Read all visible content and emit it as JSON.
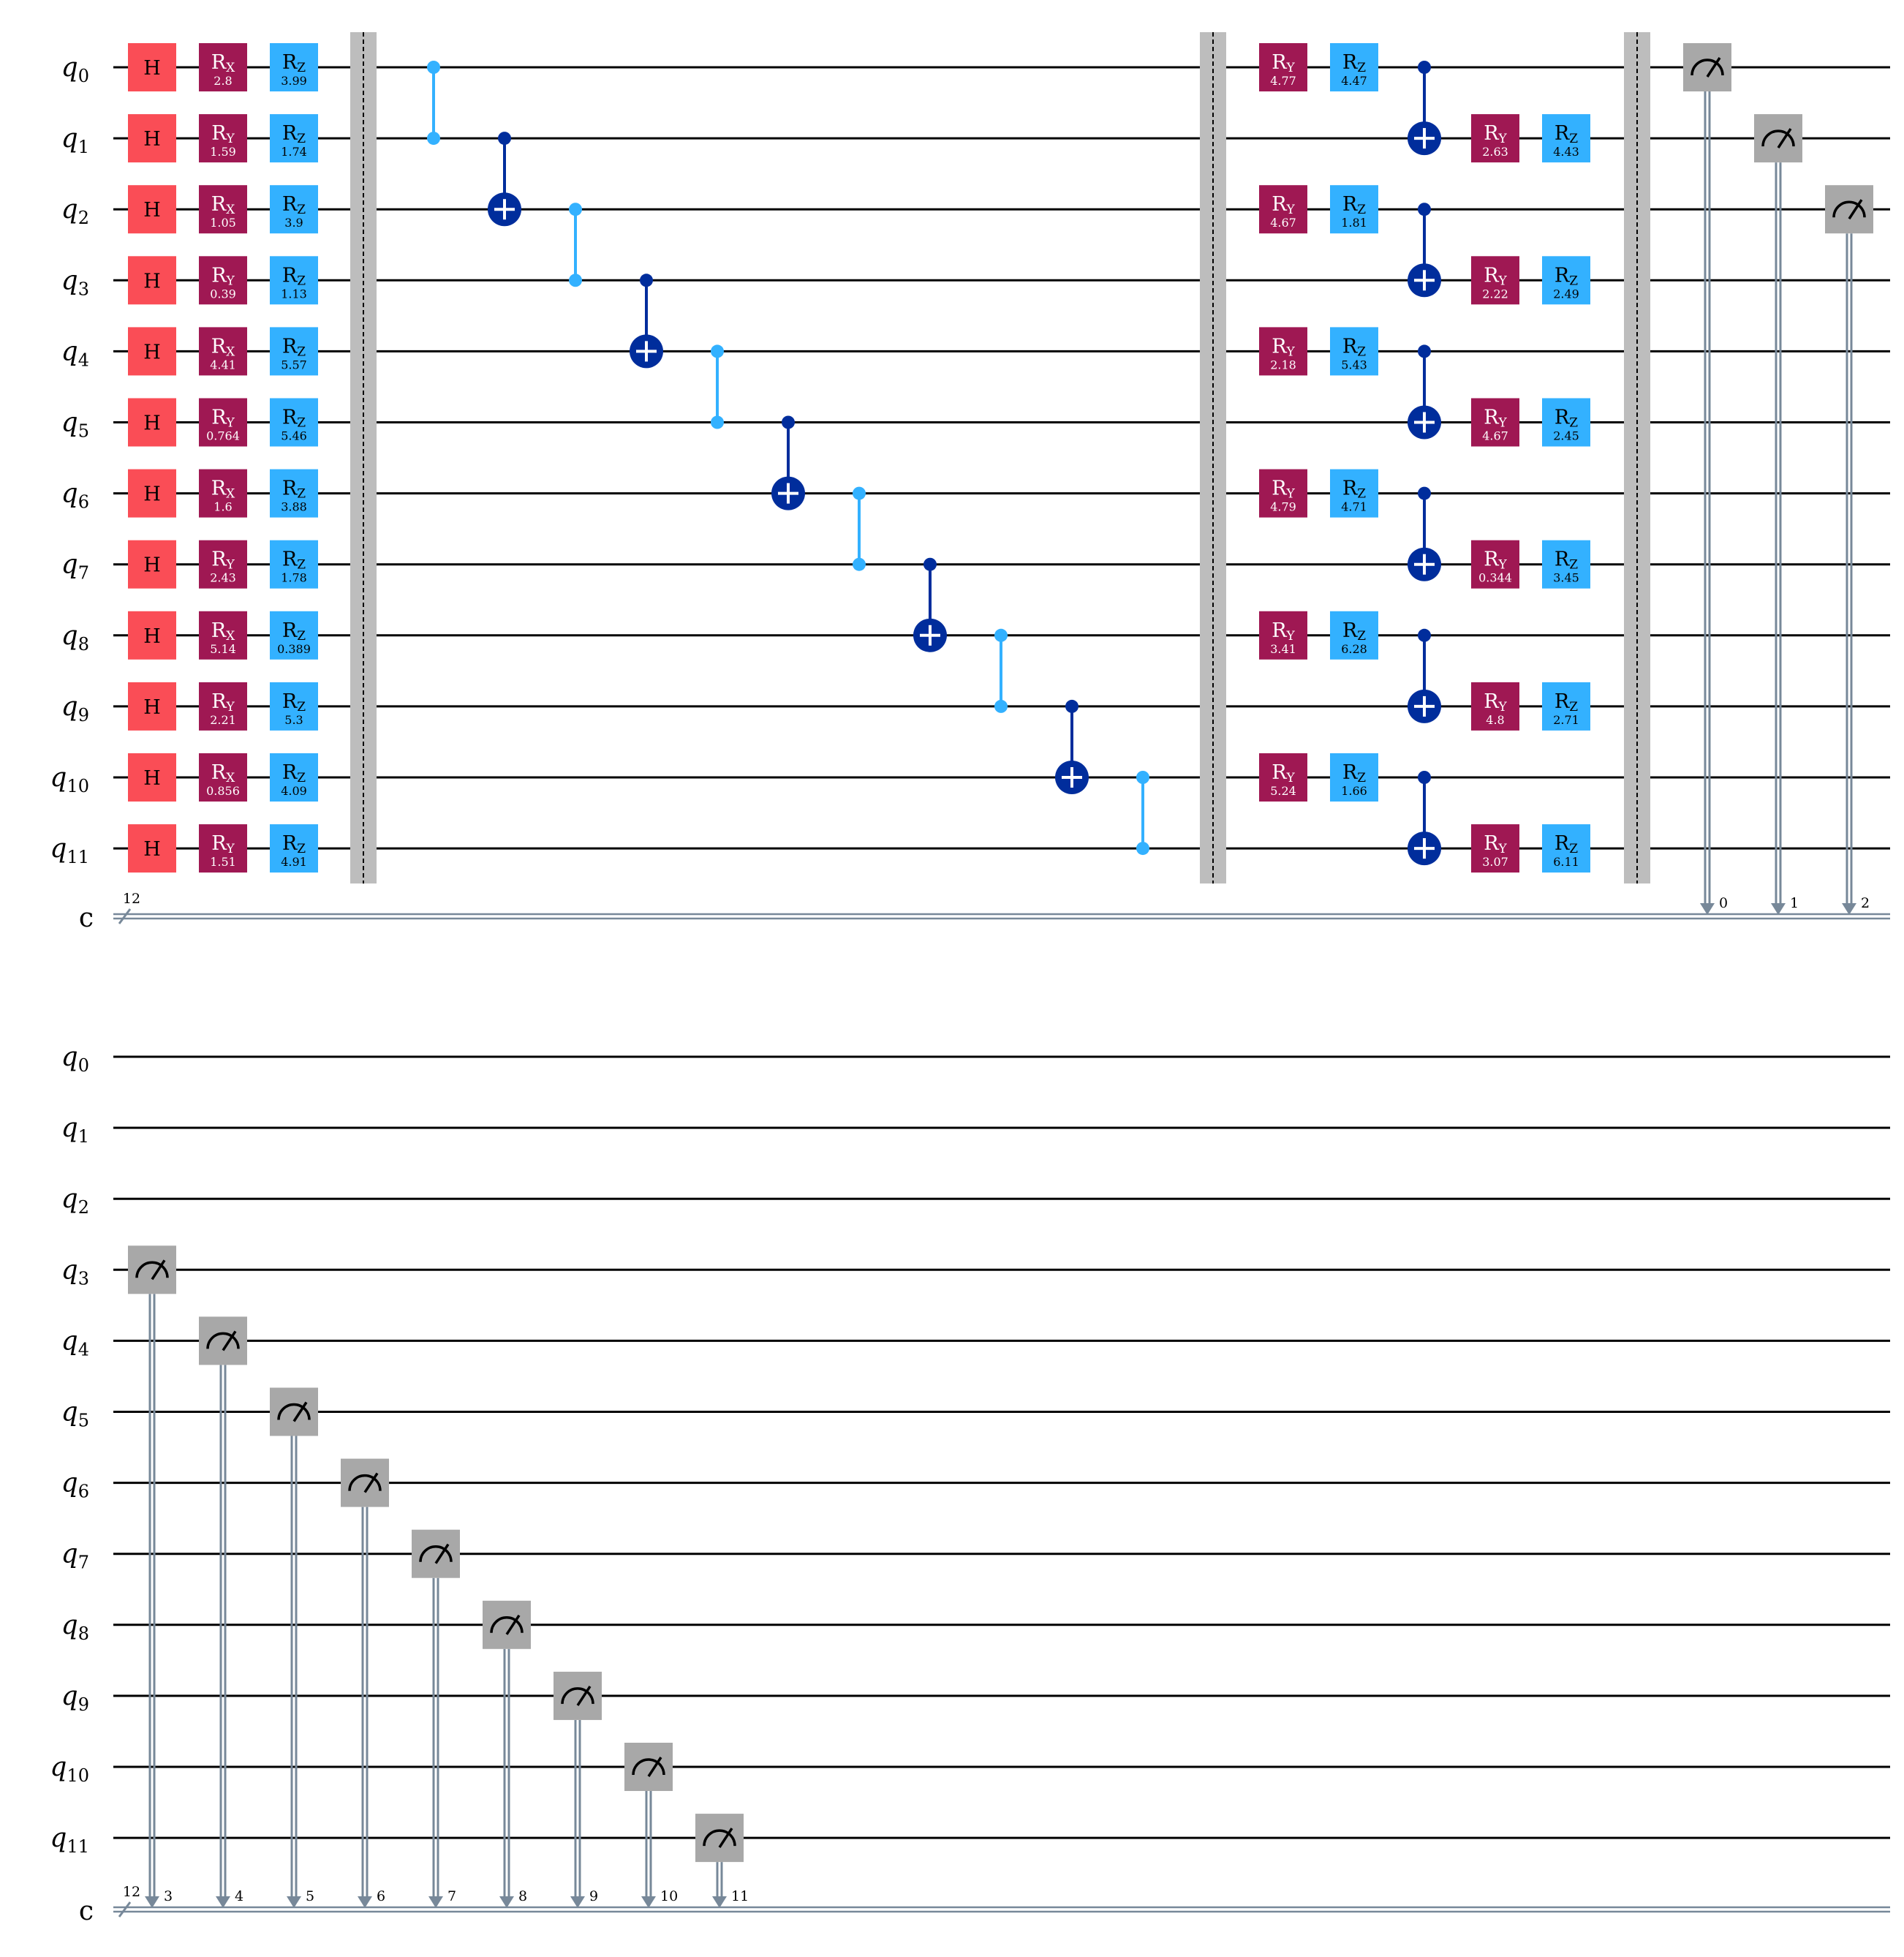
{
  "colors": {
    "h_gate": "#fa4d56",
    "rx_ry_gate": "#9f1853",
    "rz_gate": "#33b1ff",
    "cz_link": "#33b1ff",
    "cnot": "#002d9c",
    "measure": "#a8a8a8",
    "barrier": "#bdbdbd",
    "classical_wire": "#778899"
  },
  "icons": {
    "measure": "meter-icon",
    "cnot_target": "plus-circle-icon"
  },
  "qubits": [
    {
      "base": "q",
      "index": "0"
    },
    {
      "base": "q",
      "index": "1"
    },
    {
      "base": "q",
      "index": "2"
    },
    {
      "base": "q",
      "index": "3"
    },
    {
      "base": "q",
      "index": "4"
    },
    {
      "base": "q",
      "index": "5"
    },
    {
      "base": "q",
      "index": "6"
    },
    {
      "base": "q",
      "index": "7"
    },
    {
      "base": "q",
      "index": "8"
    },
    {
      "base": "q",
      "index": "9"
    },
    {
      "base": "q",
      "index": "10"
    },
    {
      "base": "q",
      "index": "11"
    }
  ],
  "classical_register": {
    "name": "c",
    "size": "12"
  },
  "layer1": {
    "h_label": "H",
    "rot": [
      {
        "axis": "X",
        "param": "2.8"
      },
      {
        "axis": "Y",
        "param": "1.59"
      },
      {
        "axis": "X",
        "param": "1.05"
      },
      {
        "axis": "Y",
        "param": "0.39"
      },
      {
        "axis": "X",
        "param": "4.41"
      },
      {
        "axis": "Y",
        "param": "0.764"
      },
      {
        "axis": "X",
        "param": "1.6"
      },
      {
        "axis": "Y",
        "param": "2.43"
      },
      {
        "axis": "X",
        "param": "5.14"
      },
      {
        "axis": "Y",
        "param": "2.21"
      },
      {
        "axis": "X",
        "param": "0.856"
      },
      {
        "axis": "Y",
        "param": "1.51"
      }
    ],
    "rz": [
      "3.99",
      "1.74",
      "3.9",
      "1.13",
      "5.57",
      "5.46",
      "3.88",
      "1.78",
      "0.389",
      "5.3",
      "4.09",
      "4.91"
    ]
  },
  "entangling": [
    {
      "type": "cz",
      "q": [
        0,
        1
      ]
    },
    {
      "type": "cx",
      "control": 1,
      "target": 2
    },
    {
      "type": "cz",
      "q": [
        2,
        3
      ]
    },
    {
      "type": "cx",
      "control": 3,
      "target": 4
    },
    {
      "type": "cz",
      "q": [
        4,
        5
      ]
    },
    {
      "type": "cx",
      "control": 5,
      "target": 6
    },
    {
      "type": "cz",
      "q": [
        6,
        7
      ]
    },
    {
      "type": "cx",
      "control": 7,
      "target": 8
    },
    {
      "type": "cz",
      "q": [
        8,
        9
      ]
    },
    {
      "type": "cx",
      "control": 9,
      "target": 10
    },
    {
      "type": "cz",
      "q": [
        10,
        11
      ]
    }
  ],
  "layer2_even": [
    {
      "q": 0,
      "ry": "4.77",
      "rz": "4.47"
    },
    {
      "q": 2,
      "ry": "4.67",
      "rz": "1.81"
    },
    {
      "q": 4,
      "ry": "2.18",
      "rz": "5.43"
    },
    {
      "q": 6,
      "ry": "4.79",
      "rz": "4.71"
    },
    {
      "q": 8,
      "ry": "3.41",
      "rz": "6.28"
    },
    {
      "q": 10,
      "ry": "5.24",
      "rz": "1.66"
    }
  ],
  "layer2_odd": [
    {
      "q": 1,
      "ry": "2.63",
      "rz": "4.43"
    },
    {
      "q": 3,
      "ry": "2.22",
      "rz": "2.49"
    },
    {
      "q": 5,
      "ry": "4.67",
      "rz": "2.45"
    },
    {
      "q": 7,
      "ry": "0.344",
      "rz": "3.45"
    },
    {
      "q": 9,
      "ry": "4.8",
      "rz": "2.71"
    },
    {
      "q": 11,
      "ry": "3.07",
      "rz": "6.11"
    }
  ],
  "rot_prefix": "R",
  "rz_axis": "Z",
  "ry_axis": "Y",
  "measure_bits_row1": [
    "0",
    "1",
    "2"
  ],
  "measure_bits_row2": [
    "3",
    "4",
    "5",
    "6",
    "7",
    "8",
    "9",
    "10",
    "11"
  ]
}
